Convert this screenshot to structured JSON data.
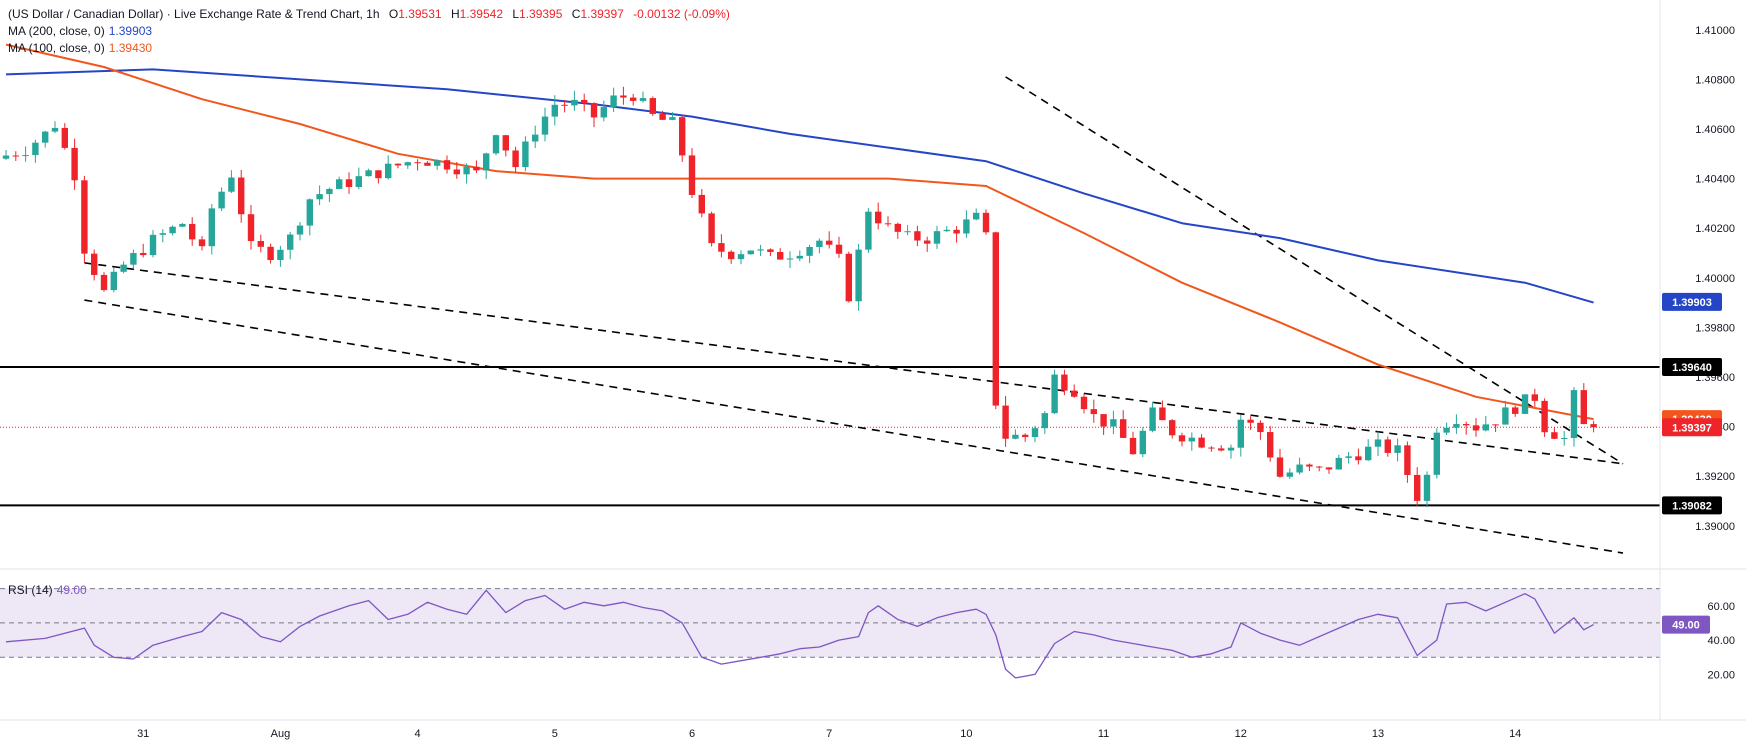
{
  "header": {
    "title": "(US Dollar / Canadian Dollar) · Live Exchange Rate & Trend Chart, 1h",
    "ohlc": [
      {
        "label": "O",
        "value": "1.39531"
      },
      {
        "label": "H",
        "value": "1.39542"
      },
      {
        "label": "L",
        "value": "1.39395"
      },
      {
        "label": "C",
        "value": "1.39397"
      }
    ],
    "change": "-0.00132 (-0.09%)",
    "ma200_label": "MA (200, close, 0)",
    "ma200_value": "1.39903",
    "ma100_label": "MA (100, close, 0)",
    "ma100_value": "1.39430",
    "rsi_label": "RSI (14)",
    "rsi_value": "49.00"
  },
  "colors": {
    "up": "#26a69a",
    "down": "#ef232a",
    "ma200": "#2446c6",
    "ma100": "#f2561d",
    "rsi": "#7e57c2",
    "rsi_band": "#ede7f6",
    "last_price": "#ef232a",
    "level": "#000000"
  },
  "chart_data": [
    {
      "type": "candlestick",
      "x_tick_labels": [
        "31",
        "Aug",
        "4",
        "5",
        "6",
        "7",
        "10",
        "11",
        "12",
        "13",
        "14"
      ],
      "y_tick_labels": [
        "1.41000",
        "1.40800",
        "1.40600",
        "1.40400",
        "1.40200",
        "1.40000",
        "1.39800",
        "1.39600",
        "1.39400",
        "1.39200",
        "1.39000"
      ],
      "ylim": [
        1.3887,
        1.4112
      ],
      "price_labels": [
        {
          "name": "MA 200",
          "value": 1.39903,
          "text": "1.39903"
        },
        {
          "name": "Resistance",
          "value": 1.3964,
          "text": "1.39640"
        },
        {
          "name": "MA 100",
          "value": 1.3943,
          "text": "1.39430"
        },
        {
          "name": "Last",
          "value": 1.39397,
          "text": "1.39397"
        },
        {
          "name": "Support",
          "value": 1.39082,
          "text": "1.39082"
        }
      ],
      "horizontal_levels": [
        1.3964,
        1.39082
      ],
      "trend_lines": [
        {
          "from": [
            8,
            1.4006
          ],
          "to": [
            165,
            1.3925
          ]
        },
        {
          "from": [
            102,
            1.4081
          ],
          "to": [
            165,
            1.3925
          ]
        },
        {
          "from": [
            8,
            1.3991
          ],
          "to": [
            165,
            1.3889
          ]
        }
      ],
      "path": [
        [
          0,
          1.4048
        ],
        [
          3,
          1.4052
        ],
        [
          5,
          1.4058
        ],
        [
          6,
          1.4062
        ],
        [
          8,
          1.4042
        ],
        [
          9,
          1.4012
        ],
        [
          11,
          1.3994
        ],
        [
          13,
          1.4005
        ],
        [
          16,
          1.4015
        ],
        [
          19,
          1.4022
        ],
        [
          21,
          1.401
        ],
        [
          22,
          1.4028
        ],
        [
          24,
          1.4042
        ],
        [
          26,
          1.4012
        ],
        [
          28,
          1.401
        ],
        [
          30,
          1.4016
        ],
        [
          32,
          1.4032
        ],
        [
          34,
          1.4036
        ],
        [
          37,
          1.404
        ],
        [
          40,
          1.4044
        ],
        [
          43,
          1.4048
        ],
        [
          46,
          1.4046
        ],
        [
          49,
          1.4042
        ],
        [
          51,
          1.406
        ],
        [
          53,
          1.4045
        ],
        [
          55,
          1.406
        ],
        [
          57,
          1.407
        ],
        [
          59,
          1.407
        ],
        [
          61,
          1.4065
        ],
        [
          63,
          1.4072
        ],
        [
          65,
          1.4074
        ],
        [
          67,
          1.4065
        ],
        [
          69,
          1.4062
        ],
        [
          70,
          1.405
        ],
        [
          71,
          1.4035
        ],
        [
          73,
          1.4012
        ],
        [
          75,
          1.401
        ],
        [
          77,
          1.4012
        ],
        [
          79,
          1.4008
        ],
        [
          81,
          1.401
        ],
        [
          84,
          1.4015
        ],
        [
          86,
          1.4007
        ],
        [
          87,
          1.3993
        ],
        [
          88,
          1.401
        ],
        [
          89,
          1.4028
        ],
        [
          91,
          1.402
        ],
        [
          93,
          1.4016
        ],
        [
          95,
          1.4016
        ],
        [
          98,
          1.402
        ],
        [
          100,
          1.4024
        ],
        [
          101,
          1.4016
        ],
        [
          102,
          1.395
        ],
        [
          103,
          1.3936
        ],
        [
          105,
          1.3936
        ],
        [
          107,
          1.3945
        ],
        [
          108,
          1.396
        ],
        [
          110,
          1.3955
        ],
        [
          112,
          1.3944
        ],
        [
          114,
          1.394
        ],
        [
          116,
          1.393
        ],
        [
          118,
          1.3945
        ],
        [
          120,
          1.3938
        ],
        [
          123,
          1.3934
        ],
        [
          126,
          1.3932
        ],
        [
          127,
          1.3943
        ],
        [
          129,
          1.3938
        ],
        [
          131,
          1.392
        ],
        [
          133,
          1.3923
        ],
        [
          135,
          1.3922
        ],
        [
          138,
          1.3928
        ],
        [
          141,
          1.3932
        ],
        [
          143,
          1.393
        ],
        [
          145,
          1.3912
        ],
        [
          146,
          1.392
        ],
        [
          147,
          1.394
        ],
        [
          149,
          1.3944
        ],
        [
          151,
          1.394
        ],
        [
          153,
          1.3943
        ],
        [
          155,
          1.3948
        ],
        [
          157,
          1.3952
        ],
        [
          158,
          1.394
        ],
        [
          160,
          1.3935
        ],
        [
          161,
          1.3952
        ],
        [
          162,
          1.394
        ]
      ],
      "ma200": [
        [
          0,
          1.4082
        ],
        [
          15,
          1.4084
        ],
        [
          45,
          1.4076
        ],
        [
          60,
          1.407
        ],
        [
          70,
          1.4065
        ],
        [
          80,
          1.4058
        ],
        [
          100,
          1.4047
        ],
        [
          110,
          1.4034
        ],
        [
          120,
          1.4022
        ],
        [
          130,
          1.4016
        ],
        [
          140,
          1.4007
        ],
        [
          155,
          1.3998
        ],
        [
          162,
          1.399
        ]
      ],
      "ma100": [
        [
          0,
          1.4094
        ],
        [
          10,
          1.4085
        ],
        [
          20,
          1.4072
        ],
        [
          30,
          1.4062
        ],
        [
          40,
          1.405
        ],
        [
          50,
          1.4043
        ],
        [
          60,
          1.404
        ],
        [
          70,
          1.404
        ],
        [
          80,
          1.404
        ],
        [
          90,
          1.404
        ],
        [
          100,
          1.4037
        ],
        [
          110,
          1.4018
        ],
        [
          120,
          1.3998
        ],
        [
          130,
          1.3982
        ],
        [
          140,
          1.3965
        ],
        [
          150,
          1.3952
        ],
        [
          162,
          1.3943
        ]
      ]
    },
    {
      "type": "line",
      "name": "RSI (14)",
      "ylim": [
        15,
        75
      ],
      "y_tick_labels": [
        "60.00",
        "40.00",
        "20.00"
      ],
      "y_ticks": [
        60,
        40,
        20
      ],
      "band": [
        30,
        70
      ],
      "mid": 50,
      "last_label": "49.00",
      "values": [
        [
          0,
          39
        ],
        [
          4,
          41
        ],
        [
          8,
          47
        ],
        [
          9,
          37
        ],
        [
          11,
          30
        ],
        [
          13,
          29
        ],
        [
          15,
          37
        ],
        [
          18,
          42
        ],
        [
          20,
          45
        ],
        [
          22,
          56
        ],
        [
          24,
          52
        ],
        [
          26,
          42
        ],
        [
          28,
          39
        ],
        [
          30,
          48
        ],
        [
          32,
          54
        ],
        [
          35,
          60
        ],
        [
          37,
          63
        ],
        [
          39,
          52
        ],
        [
          41,
          55
        ],
        [
          43,
          62
        ],
        [
          45,
          58
        ],
        [
          47,
          55
        ],
        [
          49,
          69
        ],
        [
          51,
          56
        ],
        [
          53,
          63
        ],
        [
          55,
          66
        ],
        [
          57,
          58
        ],
        [
          59,
          62
        ],
        [
          61,
          60
        ],
        [
          63,
          62
        ],
        [
          65,
          59
        ],
        [
          67,
          57
        ],
        [
          69,
          50
        ],
        [
          71,
          30
        ],
        [
          73,
          26
        ],
        [
          75,
          28
        ],
        [
          77,
          30
        ],
        [
          79,
          32
        ],
        [
          81,
          35
        ],
        [
          83,
          36
        ],
        [
          85,
          40
        ],
        [
          87,
          42
        ],
        [
          88,
          56
        ],
        [
          89,
          60
        ],
        [
          91,
          52
        ],
        [
          93,
          48
        ],
        [
          95,
          53
        ],
        [
          97,
          56
        ],
        [
          99,
          58
        ],
        [
          100,
          55
        ],
        [
          101,
          43
        ],
        [
          102,
          23
        ],
        [
          103,
          18
        ],
        [
          105,
          20
        ],
        [
          107,
          38
        ],
        [
          109,
          45
        ],
        [
          111,
          43
        ],
        [
          113,
          40
        ],
        [
          115,
          38
        ],
        [
          117,
          36
        ],
        [
          119,
          34
        ],
        [
          121,
          30
        ],
        [
          123,
          32
        ],
        [
          125,
          36
        ],
        [
          126,
          50
        ],
        [
          128,
          44
        ],
        [
          130,
          40
        ],
        [
          132,
          37
        ],
        [
          134,
          42
        ],
        [
          136,
          47
        ],
        [
          138,
          52
        ],
        [
          140,
          55
        ],
        [
          142,
          53
        ],
        [
          144,
          31
        ],
        [
          146,
          40
        ],
        [
          147,
          61
        ],
        [
          149,
          62
        ],
        [
          151,
          57
        ],
        [
          153,
          62
        ],
        [
          155,
          67
        ],
        [
          156,
          64
        ],
        [
          158,
          44
        ],
        [
          160,
          53
        ],
        [
          161,
          46
        ],
        [
          162,
          49
        ]
      ]
    }
  ]
}
